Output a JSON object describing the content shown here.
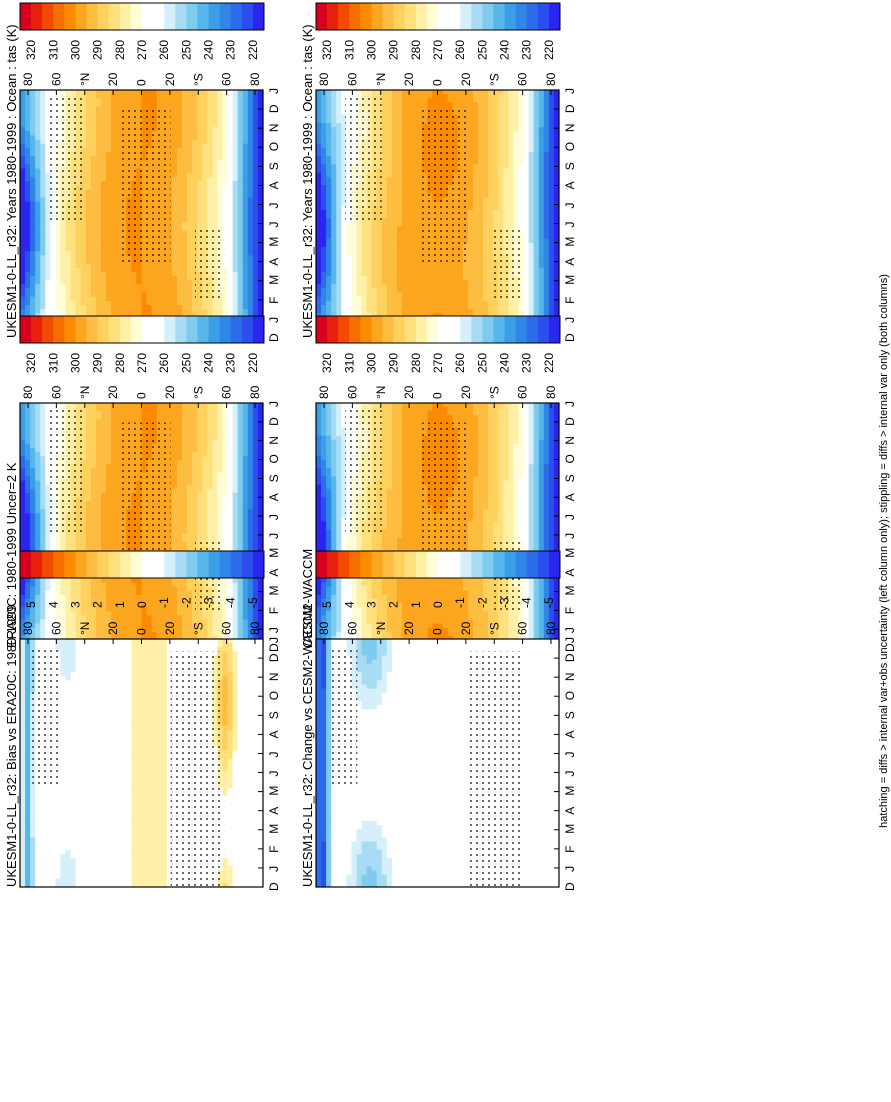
{
  "figure": {
    "footnote": "hatching = diffs > internal var+obs uncertainty (left column only); stippling = diffs > internal var only (both columns)"
  },
  "chart_data": [
    {
      "type": "heatmap",
      "panel": "top-left",
      "title": "UKESM1-0-LL_r32: Years 1980-1999 : Ocean : tas (K)",
      "x_ticks": [
        "D",
        "J",
        "F",
        "M",
        "A",
        "M",
        "J",
        "J",
        "A",
        "S",
        "O",
        "N",
        "D",
        "J"
      ],
      "y_ticks": [
        "80",
        "60",
        "°N",
        "20",
        "0",
        "20",
        "°S",
        "60",
        "80"
      ],
      "colorbar_ticks": [
        "320",
        "310",
        "300",
        "290",
        "280",
        "270",
        "260",
        "250",
        "240",
        "230",
        "220"
      ],
      "value_range": [
        215,
        325
      ],
      "stippled": true
    },
    {
      "type": "heatmap",
      "panel": "top-right",
      "title": "UKESM1-0-LL_r32: Years 1980-1999 : Ocean : tas (K)",
      "x_ticks": [
        "D",
        "J",
        "F",
        "M",
        "A",
        "M",
        "J",
        "J",
        "A",
        "S",
        "O",
        "N",
        "D",
        "J"
      ],
      "y_ticks": [
        "80",
        "60",
        "°N",
        "20",
        "0",
        "20",
        "°S",
        "60",
        "80"
      ],
      "colorbar_ticks": [
        "320",
        "310",
        "300",
        "290",
        "280",
        "270",
        "260",
        "250",
        "240",
        "230",
        "220"
      ],
      "value_range": [
        215,
        325
      ],
      "stippled": true
    },
    {
      "type": "heatmap",
      "panel": "middle-left",
      "title": "ERA20C: 1980-1999 Uncer=2 K",
      "x_ticks": [
        "D",
        "J",
        "F",
        "M",
        "A",
        "M",
        "J",
        "J",
        "A",
        "S",
        "O",
        "N",
        "D",
        "J"
      ],
      "y_ticks": [
        "80",
        "60",
        "°N",
        "20",
        "0",
        "20",
        "°S",
        "60",
        "80"
      ],
      "colorbar_ticks": [
        "320",
        "310",
        "300",
        "290",
        "280",
        "270",
        "260",
        "250",
        "240",
        "230",
        "220"
      ],
      "value_range": [
        215,
        325
      ],
      "stippled": true
    },
    {
      "type": "heatmap",
      "panel": "middle-right",
      "title": "CESM2-WACCM",
      "x_ticks": [
        "D",
        "J",
        "F",
        "M",
        "A",
        "M",
        "J",
        "J",
        "A",
        "S",
        "O",
        "N",
        "D",
        "J"
      ],
      "y_ticks": [
        "80",
        "60",
        "°N",
        "20",
        "0",
        "20",
        "°S",
        "60",
        "80"
      ],
      "colorbar_ticks": [
        "320",
        "310",
        "300",
        "290",
        "280",
        "270",
        "260",
        "250",
        "240",
        "230",
        "220"
      ],
      "value_range": [
        215,
        325
      ],
      "stippled": true
    },
    {
      "type": "heatmap",
      "panel": "bottom-left",
      "title": "UKESM1-0-LL_r32: Bias vs ERA20C: 1980-1999",
      "x_ticks": [
        "D",
        "J",
        "F",
        "M",
        "A",
        "M",
        "J",
        "J",
        "A",
        "S",
        "O",
        "N",
        "D",
        "J"
      ],
      "y_ticks": [
        "80",
        "60",
        "°N",
        "20",
        "0",
        "20",
        "°S",
        "60",
        "80"
      ],
      "colorbar_ticks": [
        "5",
        "4",
        "3",
        "2",
        "1",
        "0",
        "-1",
        "-2",
        "-3",
        "-4",
        "-5"
      ],
      "value_range": [
        -5.5,
        5.5
      ],
      "stippled": true
    },
    {
      "type": "heatmap",
      "panel": "bottom-right",
      "title": "UKESM1-0-LL_r32: Change vs CESM2-WACCM",
      "x_ticks": [
        "D",
        "J",
        "F",
        "M",
        "A",
        "M",
        "J",
        "J",
        "A",
        "S",
        "O",
        "N",
        "D",
        "J"
      ],
      "y_ticks": [
        "80",
        "60",
        "°N",
        "20",
        "0",
        "20",
        "°S",
        "60",
        "80"
      ],
      "colorbar_ticks": [
        "5",
        "4",
        "3",
        "2",
        "1",
        "0",
        "-1",
        "-2",
        "-3",
        "-4",
        "-5"
      ],
      "value_range": [
        -5.5,
        5.5
      ],
      "stippled": true
    }
  ]
}
